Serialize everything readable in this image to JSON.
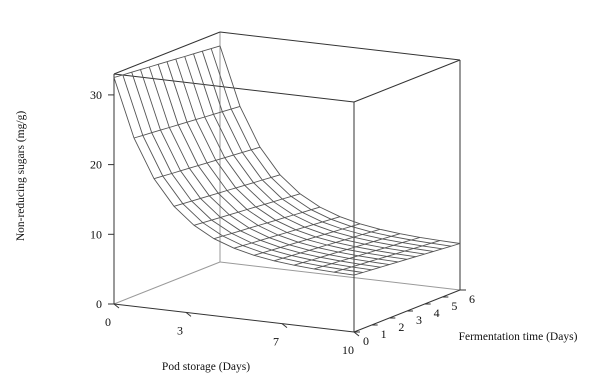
{
  "chart_data": {
    "type": "surface",
    "title": "",
    "zlabel": "Non-reducing sugars (mg/g)",
    "xlabel": "Pod storage (Days)",
    "ylabel": "Fermentation time (Days)",
    "x_ticks": [
      "0",
      "3",
      "7",
      "10"
    ],
    "y_ticks": [
      "0",
      "1",
      "2",
      "3",
      "4",
      "5",
      "6"
    ],
    "z_ticks": [
      "0",
      "10",
      "20",
      "30"
    ],
    "xlim": [
      0,
      10
    ],
    "ylim": [
      0,
      6
    ],
    "zlim": [
      0,
      33
    ],
    "x": [
      0,
      0.833,
      1.667,
      2.5,
      3.333,
      4.167,
      5,
      5.833,
      6.667,
      7.5,
      8.333,
      9.167,
      10
    ],
    "y": [
      0,
      0.5,
      1,
      1.5,
      2,
      2.5,
      3,
      3.5,
      4,
      4.5,
      5,
      5.5,
      6
    ],
    "z_model": "z = 8 + 24.5*exp(-0.5*x) - 1.5*y/6",
    "surface_color": "#555555",
    "box_color": "#333333"
  }
}
